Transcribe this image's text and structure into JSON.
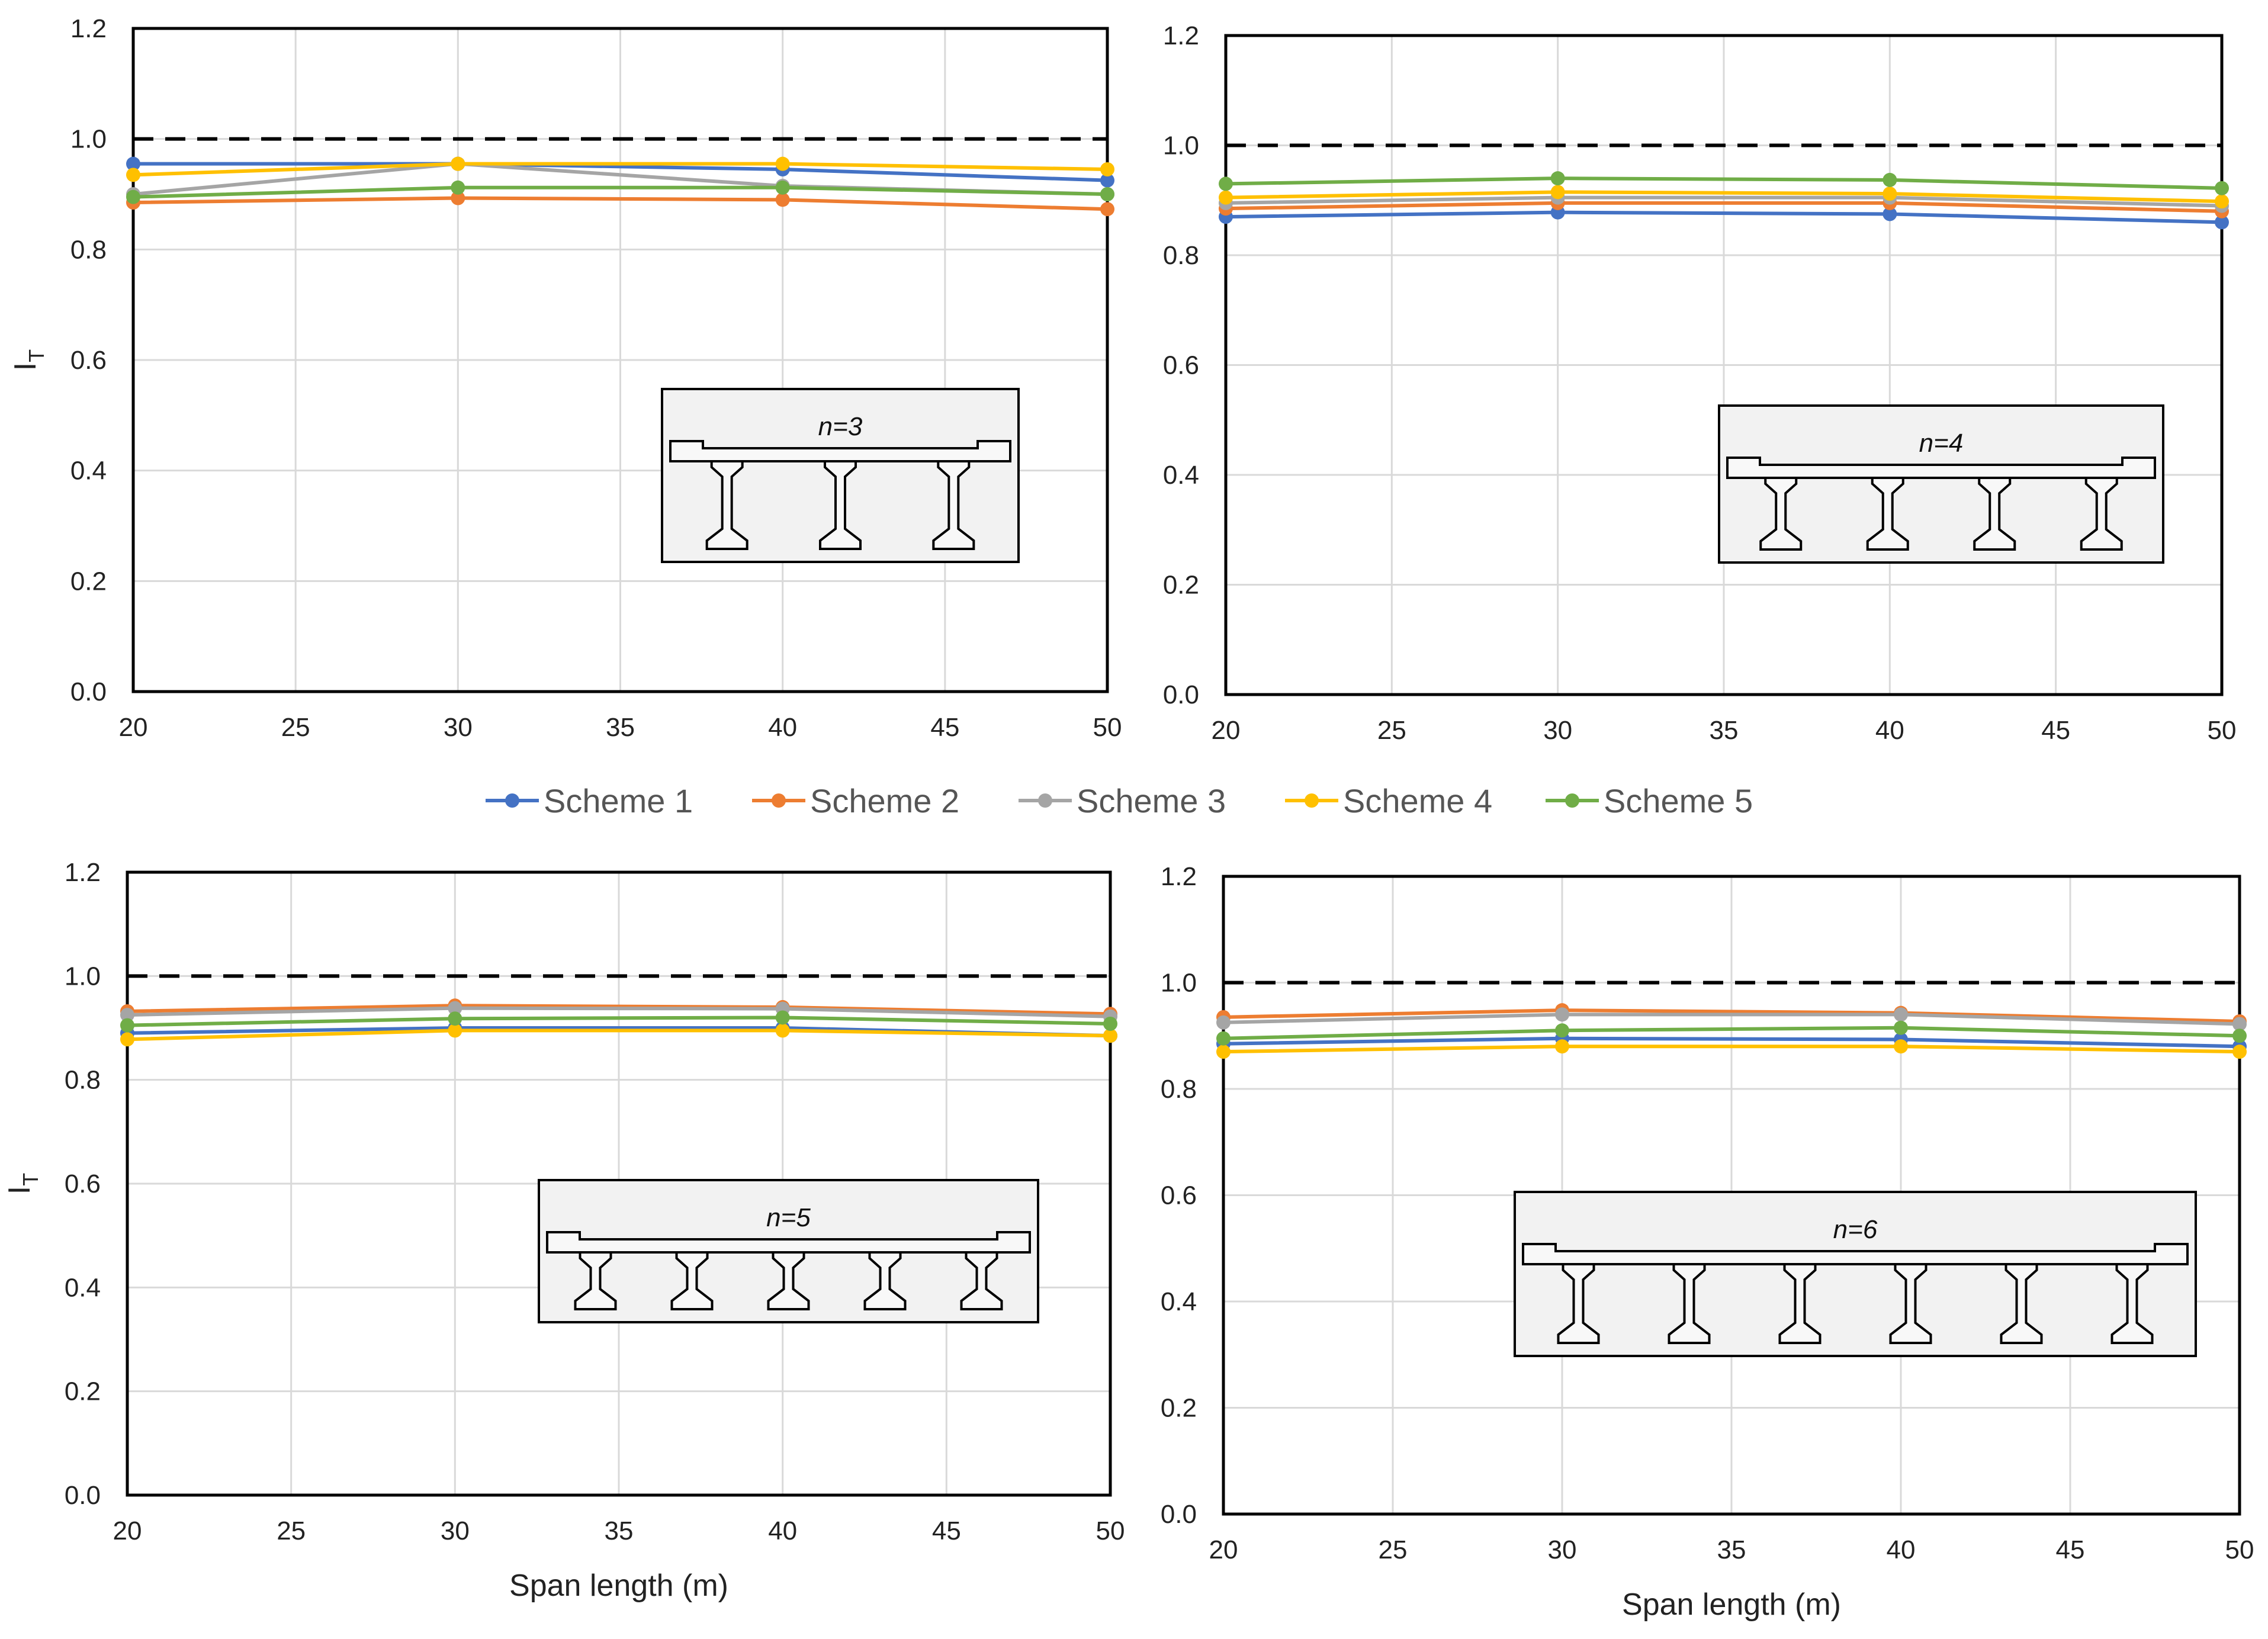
{
  "legend": [
    {
      "name": "Scheme 1",
      "color": "#4472C4"
    },
    {
      "name": "Scheme 2",
      "color": "#ED7D31"
    },
    {
      "name": "Scheme 3",
      "color": "#A5A5A5"
    },
    {
      "name": "Scheme 4",
      "color": "#FFC000"
    },
    {
      "name": "Scheme 5",
      "color": "#70AD47"
    }
  ],
  "chart_data": [
    {
      "type": "line",
      "panel": "top-left",
      "label": "n=3",
      "girders": 3,
      "x": [
        20,
        30,
        40,
        50
      ],
      "xticks": [
        "20",
        "25",
        "30",
        "35",
        "40",
        "45",
        "50"
      ],
      "yticks": [
        "0.0",
        "0.2",
        "0.4",
        "0.6",
        "0.8",
        "1.0",
        "1.2"
      ],
      "xlim": [
        20,
        50
      ],
      "ylim": [
        0,
        1.2
      ],
      "xlabel": "",
      "ylabel": "I_T",
      "reference_line": 1.0,
      "series": [
        {
          "name": "Scheme 1",
          "values": [
            0.955,
            0.955,
            0.945,
            0.925
          ]
        },
        {
          "name": "Scheme 2",
          "values": [
            0.885,
            0.893,
            0.89,
            0.873
          ]
        },
        {
          "name": "Scheme 3",
          "values": [
            0.9,
            0.955,
            0.915,
            0.9
          ]
        },
        {
          "name": "Scheme 4",
          "values": [
            0.935,
            0.955,
            0.955,
            0.945
          ]
        },
        {
          "name": "Scheme 5",
          "values": [
            0.895,
            0.912,
            0.912,
            0.9
          ]
        }
      ]
    },
    {
      "type": "line",
      "panel": "top-right",
      "label": "n=4",
      "girders": 4,
      "x": [
        20,
        30,
        40,
        50
      ],
      "xticks": [
        "20",
        "25",
        "30",
        "35",
        "40",
        "45",
        "50"
      ],
      "yticks": [
        "0.0",
        "0.2",
        "0.4",
        "0.6",
        "0.8",
        "1.0",
        "1.2"
      ],
      "xlim": [
        20,
        50
      ],
      "ylim": [
        0,
        1.2
      ],
      "xlabel": "",
      "ylabel": "",
      "reference_line": 1.0,
      "series": [
        {
          "name": "Scheme 1",
          "values": [
            0.87,
            0.878,
            0.875,
            0.86
          ]
        },
        {
          "name": "Scheme 2",
          "values": [
            0.885,
            0.895,
            0.895,
            0.88
          ]
        },
        {
          "name": "Scheme 3",
          "values": [
            0.895,
            0.905,
            0.905,
            0.89
          ]
        },
        {
          "name": "Scheme 4",
          "values": [
            0.905,
            0.915,
            0.912,
            0.898
          ]
        },
        {
          "name": "Scheme 5",
          "values": [
            0.93,
            0.94,
            0.937,
            0.922
          ]
        }
      ]
    },
    {
      "type": "line",
      "panel": "bottom-left",
      "label": "n=5",
      "girders": 5,
      "x": [
        20,
        30,
        40,
        50
      ],
      "xticks": [
        "20",
        "25",
        "30",
        "35",
        "40",
        "45",
        "50"
      ],
      "yticks": [
        "0.0",
        "0.2",
        "0.4",
        "0.6",
        "0.8",
        "1.0",
        "1.2"
      ],
      "xlim": [
        20,
        50
      ],
      "ylim": [
        0,
        1.2
      ],
      "xlabel": "Span length (m)",
      "ylabel": "I_T",
      "reference_line": 1.0,
      "series": [
        {
          "name": "Scheme 1",
          "values": [
            0.89,
            0.9,
            0.9,
            0.885
          ]
        },
        {
          "name": "Scheme 2",
          "values": [
            0.932,
            0.943,
            0.94,
            0.927
          ]
        },
        {
          "name": "Scheme 3",
          "values": [
            0.925,
            0.938,
            0.937,
            0.922
          ]
        },
        {
          "name": "Scheme 4",
          "values": [
            0.878,
            0.895,
            0.895,
            0.885
          ]
        },
        {
          "name": "Scheme 5",
          "values": [
            0.905,
            0.918,
            0.92,
            0.908
          ]
        }
      ]
    },
    {
      "type": "line",
      "panel": "bottom-right",
      "label": "n=6",
      "girders": 6,
      "x": [
        20,
        30,
        40,
        50
      ],
      "xticks": [
        "20",
        "25",
        "30",
        "35",
        "40",
        "45",
        "50"
      ],
      "yticks": [
        "0.0",
        "0.2",
        "0.4",
        "0.6",
        "0.8",
        "1.0",
        "1.2"
      ],
      "xlim": [
        20,
        50
      ],
      "ylim": [
        0,
        1.2
      ],
      "xlabel": "Span length (m)",
      "ylabel": "",
      "reference_line": 1.0,
      "series": [
        {
          "name": "Scheme 1",
          "values": [
            0.885,
            0.895,
            0.893,
            0.88
          ]
        },
        {
          "name": "Scheme 2",
          "values": [
            0.935,
            0.948,
            0.943,
            0.927
          ]
        },
        {
          "name": "Scheme 3",
          "values": [
            0.925,
            0.94,
            0.94,
            0.922
          ]
        },
        {
          "name": "Scheme 4",
          "values": [
            0.87,
            0.88,
            0.88,
            0.87
          ]
        },
        {
          "name": "Scheme 5",
          "values": [
            0.895,
            0.91,
            0.915,
            0.9
          ]
        }
      ]
    }
  ]
}
